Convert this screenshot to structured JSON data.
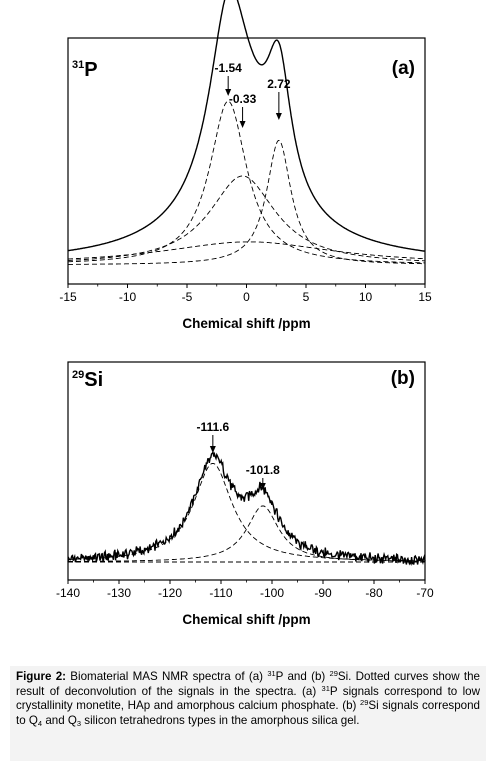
{
  "chart_data": [
    {
      "type": "line",
      "panel_label": "(a)",
      "nucleus": {
        "mass": "31",
        "symbol": "P"
      },
      "xlabel": "Chemical shift /ppm",
      "ylabel": "",
      "xlim": [
        -15,
        15
      ],
      "xticks": [
        -15,
        -10,
        -5,
        0,
        5,
        10,
        15
      ],
      "grid": false,
      "legend": "none",
      "peak_labels": [
        {
          "text": "-1.54",
          "x": -1.54
        },
        {
          "text": "-0.33",
          "x": -0.33
        },
        {
          "text": "2.72",
          "x": 2.72
        }
      ],
      "components": [
        {
          "center": -1.54,
          "height": 0.92,
          "width": 1.9
        },
        {
          "center": -0.33,
          "height": 0.5,
          "width": 3.4
        },
        {
          "center": 2.72,
          "height": 0.7,
          "width": 1.25
        },
        {
          "center": 0.2,
          "height": 0.13,
          "width": 9.0
        }
      ]
    },
    {
      "type": "line",
      "panel_label": "(b)",
      "nucleus": {
        "mass": "29",
        "symbol": "Si"
      },
      "xlabel": "Chemical shift /ppm",
      "ylabel": "",
      "xlim": [
        -140,
        -70
      ],
      "xticks": [
        -140,
        -130,
        -120,
        -110,
        -100,
        -90,
        -80,
        -70
      ],
      "grid": false,
      "legend": "none",
      "peak_labels": [
        {
          "text": "-111.6",
          "x": -111.6
        },
        {
          "text": "-101.8",
          "x": -101.8
        }
      ],
      "components": [
        {
          "center": -111.6,
          "height": 0.58,
          "width": 4.6
        },
        {
          "center": -101.8,
          "height": 0.33,
          "width": 3.8
        }
      ]
    }
  ],
  "caption": {
    "label": "Figure 2:",
    "line1": "Biomaterial MAS NMR spectra of (a) 31P and (b) 29Si. Dotted",
    "line2": "curves show the result of deconvolution of the signals in the spectra. (a) 31P",
    "line3": "signals correspond to low crystallinity monetite, HAp and amorphous calcium",
    "line4": "phosphate. (b) 29Si signals correspond to Q4 and Q3 silicon tetrahedrons types",
    "line5": "in the amorphous silica gel."
  }
}
